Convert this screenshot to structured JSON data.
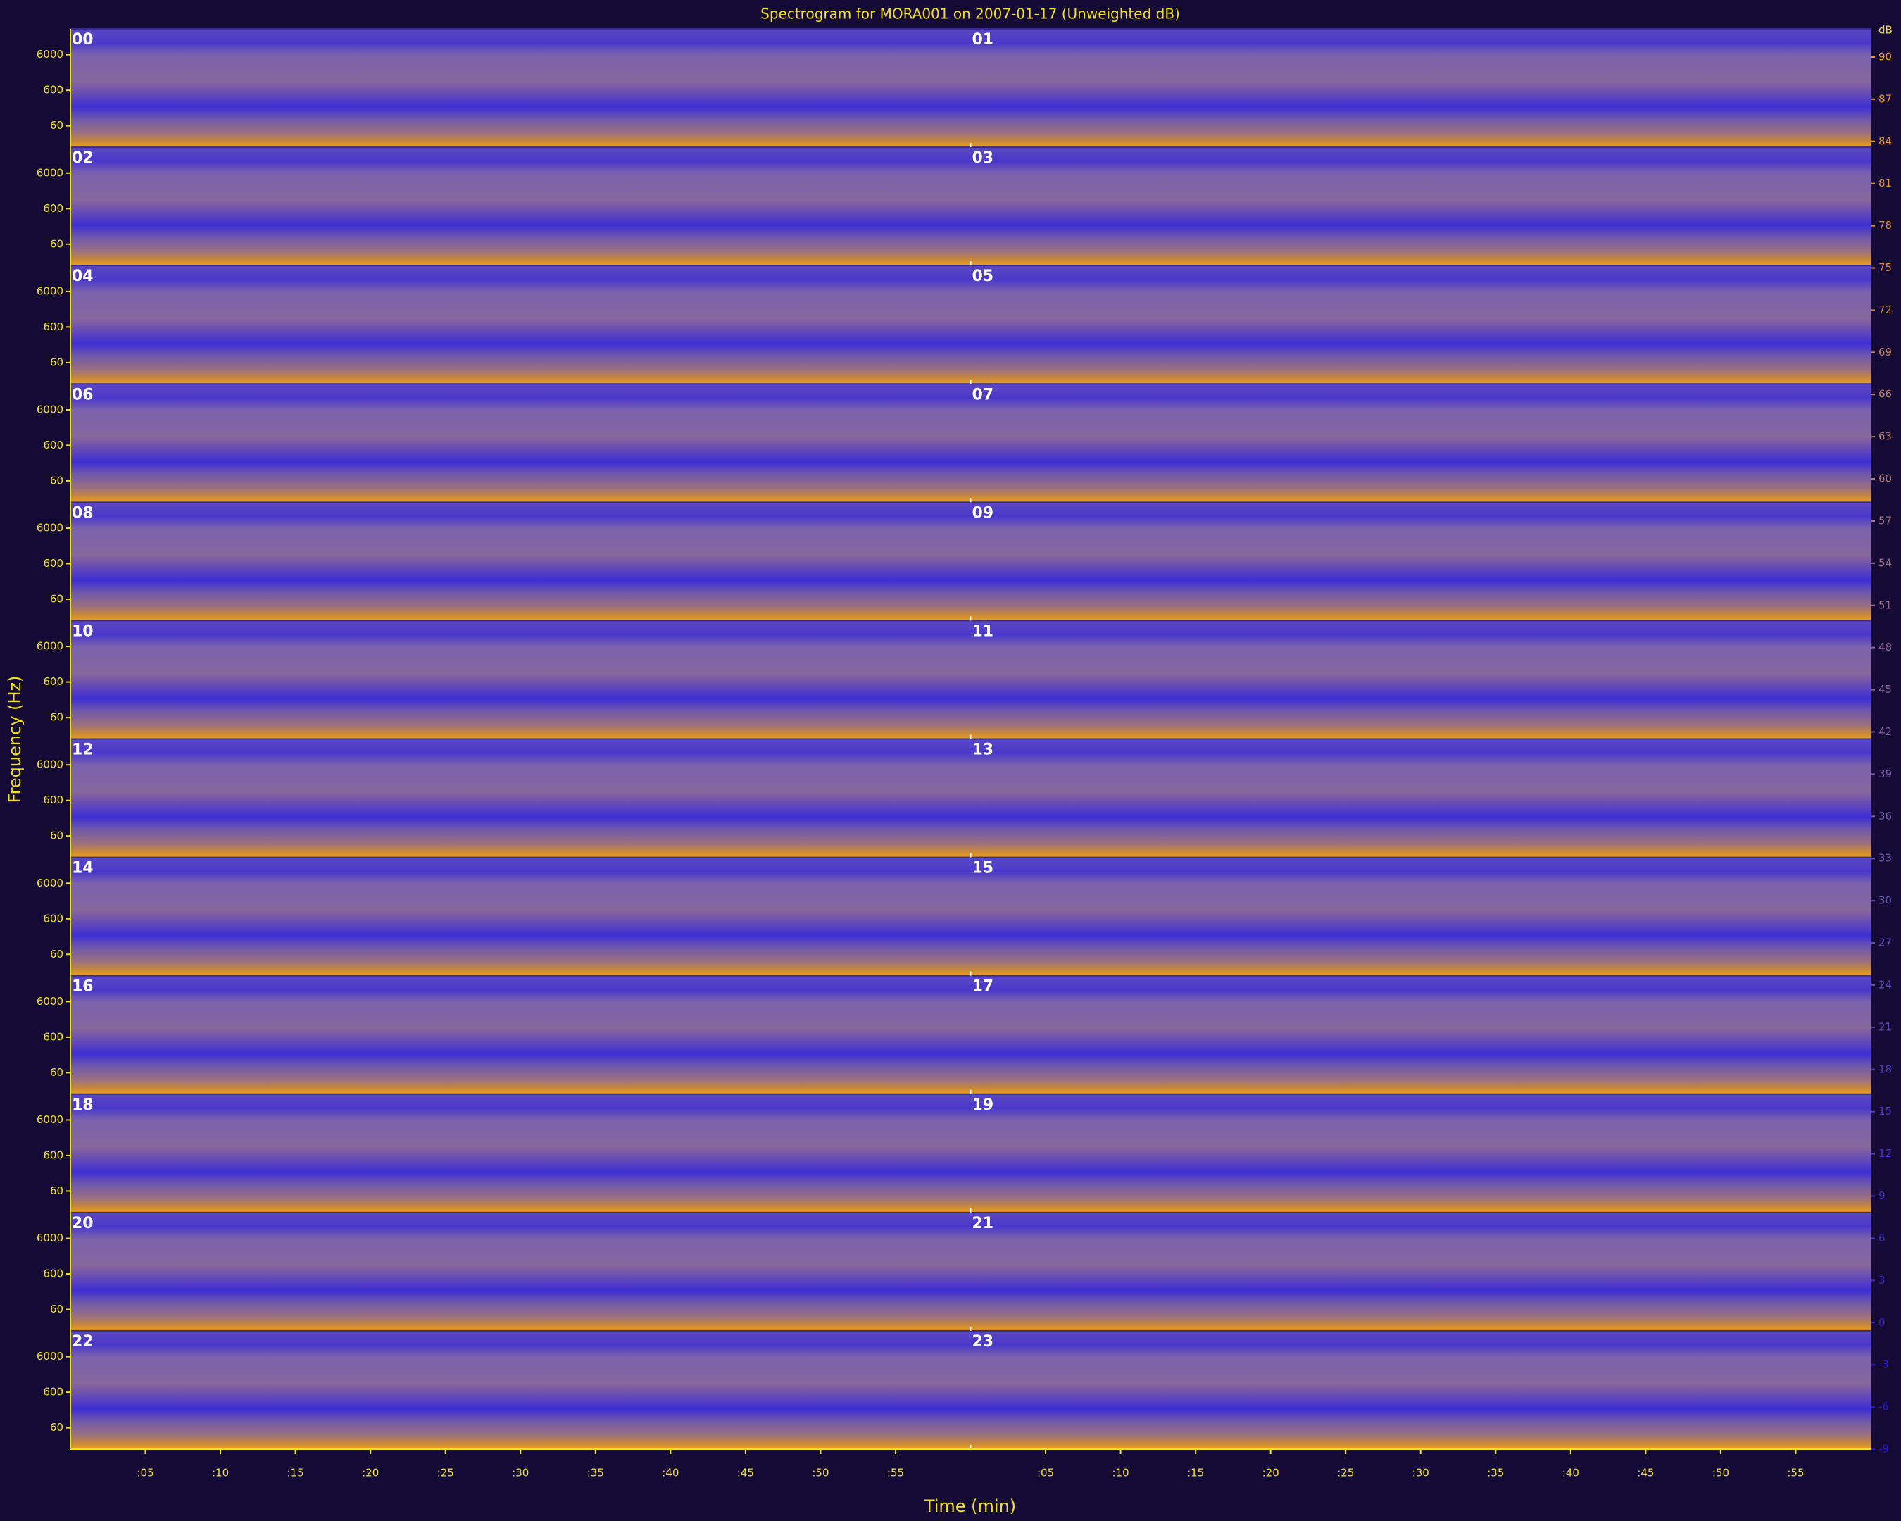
{
  "chart_data": {
    "type": "spectrogram",
    "title": "Spectrogram for MORA001 on 2007-01-17 (Unweighted dB)",
    "xlabel": "Time (min)",
    "ylabel": "Frequency (Hz)",
    "colorbar_label": "dB",
    "panels": [
      "00",
      "01",
      "02",
      "03",
      "04",
      "05",
      "06",
      "07",
      "08",
      "09",
      "10",
      "11",
      "12",
      "13",
      "14",
      "15",
      "16",
      "17",
      "18",
      "19",
      "20",
      "21",
      "22",
      "23"
    ],
    "columns": 2,
    "xlim": [
      0,
      60
    ],
    "xticks": [
      {
        "value": 5,
        "label": ":05"
      },
      {
        "value": 10,
        "label": ":10"
      },
      {
        "value": 15,
        "label": ":15"
      },
      {
        "value": 20,
        "label": ":20"
      },
      {
        "value": 25,
        "label": ":25"
      },
      {
        "value": 30,
        "label": ":30"
      },
      {
        "value": 35,
        "label": ":35"
      },
      {
        "value": 40,
        "label": ":40"
      },
      {
        "value": 45,
        "label": ":45"
      },
      {
        "value": 50,
        "label": ":50"
      },
      {
        "value": 55,
        "label": ":55"
      }
    ],
    "yscale": "log",
    "ylim": [
      15,
      32000
    ],
    "yticks": [
      60,
      600,
      6000
    ],
    "clim": [
      -9,
      92
    ],
    "cticks": [
      90,
      87,
      84,
      81,
      78,
      75,
      72,
      69,
      66,
      63,
      60,
      57,
      54,
      51,
      48,
      45,
      42,
      39,
      36,
      33,
      30,
      27,
      24,
      21,
      18,
      15,
      12,
      9,
      6,
      3,
      0,
      -3,
      -6,
      -9
    ],
    "colormap": [
      "#2818d8",
      "#8060a8",
      "#ffa010"
    ],
    "axis_color": "#f0e020"
  }
}
